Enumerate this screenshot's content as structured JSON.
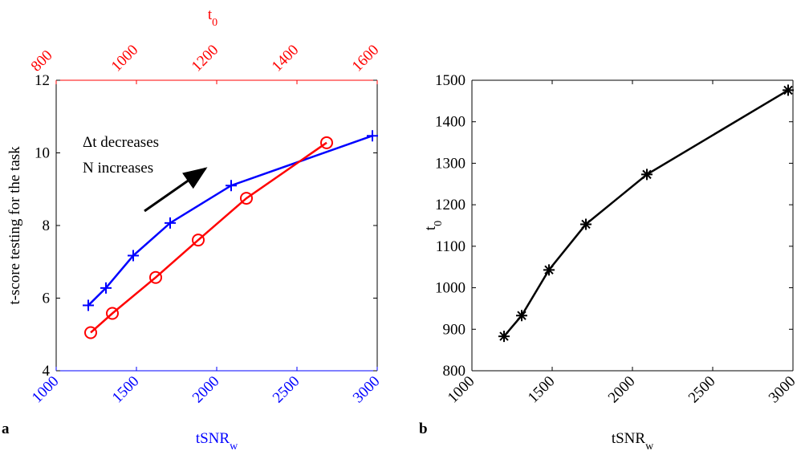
{
  "chart_data": [
    {
      "type": "line",
      "panel_label": "a",
      "xlabel": {
        "text": "tSNR",
        "sub": "w"
      },
      "x2label": {
        "text": "t",
        "sub": "0"
      },
      "ylabel": {
        "text": "t-score testing for the task"
      },
      "annotations": [
        "Δt decreases",
        "N increases"
      ],
      "xlim": [
        1000,
        3000
      ],
      "xticks": [
        1000,
        1500,
        2000,
        2500,
        3000
      ],
      "xaxis_color": "#0000ff",
      "x2lim": [
        800,
        1600
      ],
      "x2ticks": [
        800,
        1000,
        1200,
        1400,
        1600
      ],
      "x2axis_color": "#ff0000",
      "ylim": [
        4,
        12
      ],
      "yticks": [
        4,
        6,
        8,
        10,
        12
      ],
      "series": [
        {
          "color": "#0000ff",
          "marker": "plus",
          "axis": "x",
          "x": [
            1200,
            1310,
            1480,
            1710,
            2090,
            2970
          ],
          "values": [
            5.8,
            6.28,
            7.17,
            8.07,
            9.1,
            10.47
          ]
        },
        {
          "color": "#ff0000",
          "marker": "circle",
          "axis": "x2",
          "x": [
            886,
            940,
            1048,
            1154,
            1274,
            1474
          ],
          "values": [
            5.05,
            5.58,
            6.57,
            7.6,
            8.75,
            10.28
          ]
        }
      ]
    },
    {
      "type": "line",
      "panel_label": "b",
      "xlabel": {
        "text": "tSNR",
        "sub": "w"
      },
      "ylabel": {
        "text": "t",
        "sub": "0"
      },
      "xlim": [
        1000,
        3000
      ],
      "xticks": [
        1000,
        1500,
        2000,
        2500,
        3000
      ],
      "xaxis_color": "#000000",
      "ylim": [
        800,
        1500
      ],
      "yticks": [
        800,
        900,
        1000,
        1100,
        1200,
        1300,
        1400,
        1500
      ],
      "series": [
        {
          "color": "#000000",
          "marker": "asterisk",
          "axis": "x",
          "x": [
            1200,
            1310,
            1480,
            1710,
            2090,
            2970
          ],
          "values": [
            883,
            933,
            1043,
            1153,
            1273,
            1476
          ]
        }
      ]
    }
  ]
}
